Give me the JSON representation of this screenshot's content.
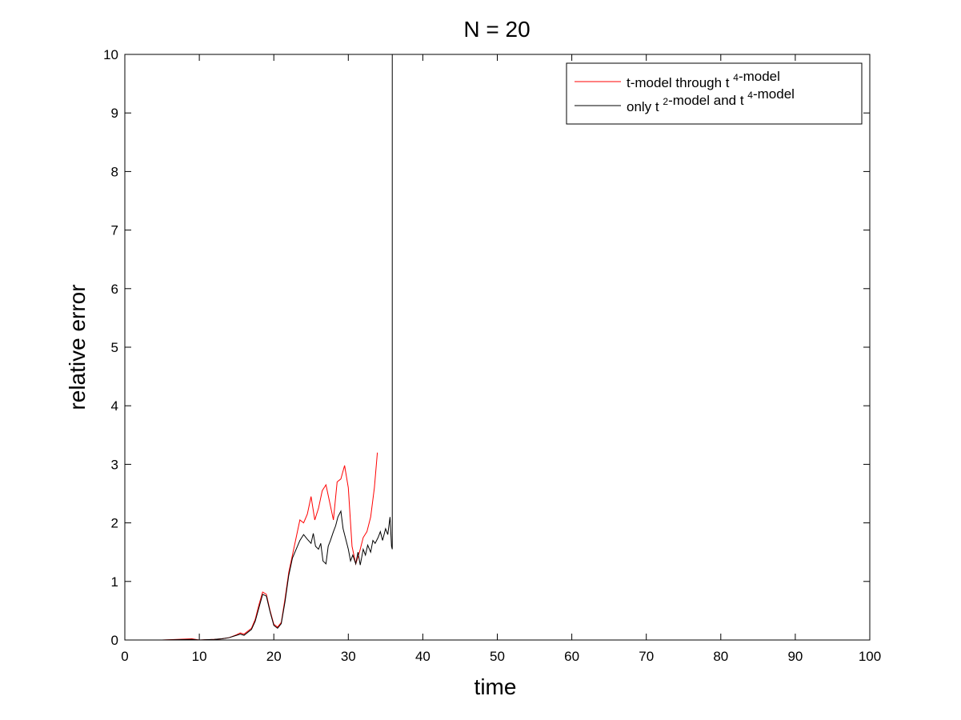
{
  "chart_data": {
    "type": "line",
    "title": "N = 20",
    "xlabel": "time",
    "ylabel": "relative error",
    "xlim": [
      0,
      100
    ],
    "ylim": [
      0,
      10
    ],
    "xticks": [
      0,
      10,
      20,
      30,
      40,
      50,
      60,
      70,
      80,
      90,
      100
    ],
    "yticks": [
      0,
      1,
      2,
      3,
      4,
      5,
      6,
      7,
      8,
      9,
      10
    ],
    "grid": false,
    "legend_position": "top-right",
    "series": [
      {
        "name": "t-model through t 4-model",
        "legend": {
          "pre": "t-model through t",
          "sup": "4",
          "post": "-model"
        },
        "color": "#ff0000",
        "x": [
          0,
          5,
          9,
          10,
          12,
          13,
          14,
          15,
          15.5,
          16,
          17,
          17.5,
          18,
          18.5,
          19,
          19.5,
          20,
          20.5,
          21,
          21.5,
          22,
          22.5,
          23,
          23.5,
          24,
          24.5,
          25,
          25.5,
          26,
          26.5,
          27,
          27.5,
          28,
          28.5,
          29,
          29.5,
          30,
          30.5,
          31,
          31.5,
          32,
          32.5,
          33,
          33.5,
          33.9
        ],
        "y": [
          0,
          0,
          0.02,
          0,
          0.01,
          0.02,
          0.04,
          0.09,
          0.12,
          0.1,
          0.2,
          0.35,
          0.6,
          0.82,
          0.78,
          0.5,
          0.27,
          0.22,
          0.3,
          0.7,
          1.15,
          1.45,
          1.75,
          2.05,
          2.0,
          2.15,
          2.45,
          2.05,
          2.25,
          2.55,
          2.65,
          2.35,
          2.05,
          2.7,
          2.75,
          2.98,
          2.6,
          1.6,
          1.3,
          1.5,
          1.75,
          1.85,
          2.1,
          2.6,
          3.2
        ]
      },
      {
        "name": "only t 2-model and t 4-model",
        "legend": {
          "pre": "only t",
          "sup": "2",
          "mid": "-model and t",
          "sup2": "4",
          "post": "-model"
        },
        "color": "#000000",
        "x": [
          0,
          5,
          9,
          10,
          12,
          13,
          14,
          15,
          15.5,
          16,
          17,
          17.5,
          18,
          18.5,
          19,
          19.5,
          20,
          20.5,
          21,
          21.5,
          22,
          22.5,
          23,
          23.5,
          24,
          24.5,
          25,
          25.3,
          25.6,
          26,
          26.3,
          26.6,
          27,
          27.3,
          27.6,
          28,
          28.3,
          28.6,
          29,
          29.3,
          29.6,
          30,
          30.3,
          30.6,
          31,
          31.3,
          31.6,
          32,
          32.3,
          32.6,
          33,
          33.3,
          33.6,
          34,
          34.3,
          34.6,
          35,
          35.3,
          35.6,
          35.8,
          35.9,
          35.9,
          36
        ],
        "y": [
          0,
          0,
          0.01,
          0,
          0.01,
          0.02,
          0.04,
          0.08,
          0.1,
          0.08,
          0.18,
          0.32,
          0.55,
          0.78,
          0.75,
          0.48,
          0.25,
          0.2,
          0.28,
          0.65,
          1.1,
          1.4,
          1.55,
          1.7,
          1.8,
          1.72,
          1.65,
          1.82,
          1.6,
          1.55,
          1.65,
          1.35,
          1.3,
          1.6,
          1.7,
          1.85,
          1.95,
          2.1,
          2.2,
          1.9,
          1.75,
          1.55,
          1.35,
          1.45,
          1.3,
          1.5,
          1.28,
          1.55,
          1.45,
          1.62,
          1.5,
          1.7,
          1.65,
          1.75,
          1.85,
          1.7,
          1.9,
          1.8,
          2.1,
          1.6,
          1.55,
          10,
          10
        ]
      }
    ]
  }
}
